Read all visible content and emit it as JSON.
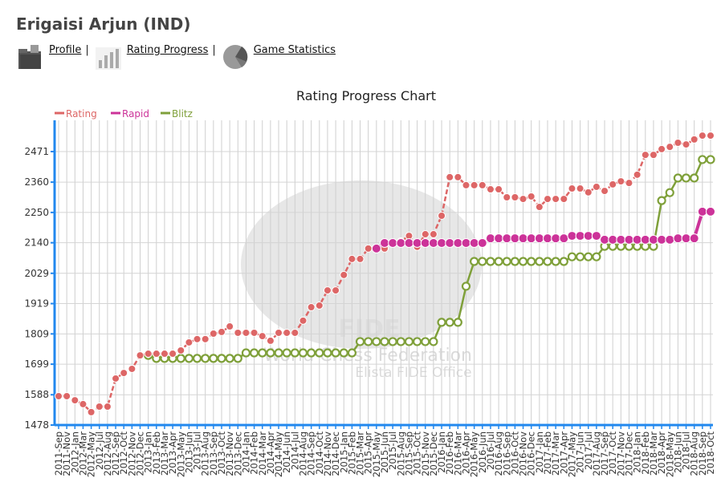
{
  "header": {
    "title": "Erigaisi Arjun (IND)",
    "nav": [
      {
        "label": "Profile",
        "icon": "folder-icon"
      },
      {
        "label": "Rating Progress",
        "icon": "bar-chart-icon"
      },
      {
        "label": "Game Statistics",
        "icon": "pie-chart-icon"
      }
    ],
    "separator": "|"
  },
  "watermark": {
    "line1": "FIDE",
    "line2": "World Chess Federation",
    "line3": "Elista FIDE Office"
  },
  "chart_data": {
    "type": "line",
    "title": "Rating Progress Chart",
    "xlabel": "",
    "ylabel": "",
    "ylim": [
      1478,
      2540
    ],
    "yticks": [
      1478,
      1588,
      1699,
      1809,
      1919,
      2029,
      2140,
      2250,
      2360,
      2471
    ],
    "grid": true,
    "legend_placement": "top-left",
    "categories": [
      "2011-Sep",
      "2011-Nov",
      "2012-Jan",
      "2012-Mar",
      "2012-May",
      "2012-Jul",
      "2012-Aug",
      "2012-Sep",
      "2012-Oct",
      "2012-Nov",
      "2012-Dec",
      "2013-Jan",
      "2013-Feb",
      "2013-Mar",
      "2013-Apr",
      "2013-May",
      "2013-Jun",
      "2013-Jul",
      "2013-Aug",
      "2013-Sep",
      "2013-Oct",
      "2013-Nov",
      "2013-Dec",
      "2014-Jan",
      "2014-Feb",
      "2014-Mar",
      "2014-Apr",
      "2014-May",
      "2014-Jun",
      "2014-Jul",
      "2014-Aug",
      "2014-Sep",
      "2014-Oct",
      "2014-Nov",
      "2014-Dec",
      "2015-Jan",
      "2015-Feb",
      "2015-Mar",
      "2015-Apr",
      "2015-May",
      "2015-Jun",
      "2015-Jul",
      "2015-Aug",
      "2015-Sep",
      "2015-Oct",
      "2015-Nov",
      "2015-Dec",
      "2016-Jan",
      "2016-Feb",
      "2016-Mar",
      "2016-Apr",
      "2016-May",
      "2016-Jun",
      "2016-Jul",
      "2016-Aug",
      "2016-Sep",
      "2016-Oct",
      "2016-Nov",
      "2016-Dec",
      "2017-Jan",
      "2017-Feb",
      "2017-Mar",
      "2017-Apr",
      "2017-May",
      "2017-Jun",
      "2017-Jul",
      "2017-Aug",
      "2017-Sep",
      "2017-Oct",
      "2017-Nov",
      "2017-Dec",
      "2018-Jan",
      "2018-Feb",
      "2018-Mar",
      "2018-Apr",
      "2018-May",
      "2018-Jun",
      "2018-Jul",
      "2018-Aug",
      "2018-Sep",
      "2018-Oct"
    ],
    "series": [
      {
        "name": "Rating",
        "color": "#dd6666",
        "values": [
          1583,
          1583,
          1568,
          1554,
          1525,
          1545,
          1545,
          1647,
          1667,
          1682,
          1731,
          1737,
          1737,
          1737,
          1737,
          1749,
          1778,
          1790,
          1790,
          1810,
          1816,
          1836,
          1813,
          1813,
          1813,
          1801,
          1784,
          1813,
          1813,
          1813,
          1857,
          1906,
          1912,
          1967,
          1967,
          2023,
          2081,
          2081,
          2119,
          2119,
          2119,
          2140,
          2145,
          2165,
          2125,
          2171,
          2171,
          2238,
          2378,
          2378,
          2349,
          2349,
          2349,
          2334,
          2334,
          2305,
          2305,
          2299,
          2308,
          2270,
          2299,
          2299,
          2299,
          2337,
          2337,
          2323,
          2343,
          2328,
          2352,
          2363,
          2357,
          2387,
          2459,
          2459,
          2480,
          2488,
          2503,
          2497,
          2515,
          2529,
          2529
        ]
      },
      {
        "name": "Rapid",
        "color": "#cc3399",
        "values": [
          null,
          null,
          null,
          null,
          null,
          null,
          null,
          null,
          null,
          null,
          null,
          null,
          null,
          null,
          null,
          null,
          null,
          null,
          null,
          null,
          null,
          null,
          null,
          null,
          null,
          null,
          null,
          null,
          null,
          null,
          null,
          null,
          null,
          null,
          null,
          null,
          null,
          null,
          null,
          2119,
          2139,
          2139,
          2139,
          2139,
          2139,
          2139,
          2139,
          2139,
          2139,
          2139,
          2139,
          2139,
          2139,
          2156,
          2156,
          2156,
          2156,
          2156,
          2156,
          2156,
          2156,
          2156,
          2156,
          2165,
          2165,
          2165,
          2165,
          2151,
          2151,
          2151,
          2151,
          2151,
          2151,
          2151,
          2151,
          2151,
          2156,
          2156,
          2156,
          2253,
          2253
        ]
      },
      {
        "name": "Blitz",
        "color": "#7fa03a",
        "values": [
          null,
          null,
          null,
          null,
          null,
          null,
          null,
          null,
          null,
          null,
          null,
          1731,
          1720,
          1720,
          1720,
          1720,
          1720,
          1720,
          1720,
          1720,
          1720,
          1720,
          1720,
          1740,
          1740,
          1740,
          1740,
          1740,
          1740,
          1740,
          1740,
          1740,
          1740,
          1740,
          1740,
          1740,
          1740,
          1781,
          1781,
          1781,
          1781,
          1781,
          1781,
          1781,
          1781,
          1781,
          1781,
          1851,
          1851,
          1851,
          1982,
          2072,
          2072,
          2072,
          2072,
          2072,
          2072,
          2072,
          2072,
          2072,
          2072,
          2072,
          2072,
          2089,
          2089,
          2089,
          2089,
          2127,
          2127,
          2127,
          2127,
          2127,
          2127,
          2127,
          2293,
          2322,
          2375,
          2375,
          2375,
          2442,
          2442
        ]
      }
    ]
  }
}
